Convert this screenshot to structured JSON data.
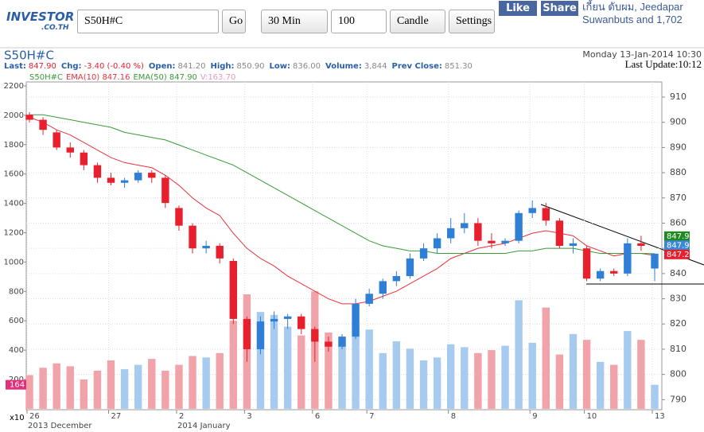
{
  "toolbar": {
    "logo": "INVESTOR",
    "logo_sub": ".CO.TH",
    "symbol": "S50H#C",
    "go": "Go",
    "interval": "30 Min",
    "count": "100",
    "chart_style": "Candle",
    "settings": "Settings",
    "like": "Like",
    "share": "Share",
    "social": "เกี้ยน ดับผม, Jeedapar Suwanbuts and 1,702"
  },
  "header": {
    "symbol": "S50H#C",
    "date": "Monday 13-Jan-2014 10:30",
    "last_update": "Last Update:10:12",
    "fields": [
      [
        "Last:",
        "847.90"
      ],
      [
        "Chg:",
        "-3.40 (-0.40 %)"
      ],
      [
        "Open:",
        "841.20"
      ],
      [
        "High:",
        "850.90"
      ],
      [
        "Low:",
        "836.00"
      ],
      [
        "Volume:",
        "3,844"
      ],
      [
        "Prev Close:",
        "851.30"
      ]
    ],
    "legend": [
      "S50H#C",
      "EMA(10) 847.16",
      "EMA(50) 847.90",
      "V:163.70"
    ]
  },
  "chart_data": {
    "type": "candlestick",
    "categories": [
      "26",
      null,
      null,
      null,
      null,
      null,
      "27",
      null,
      null,
      null,
      null,
      "2",
      null,
      null,
      null,
      null,
      "3",
      null,
      null,
      null,
      null,
      "6",
      null,
      null,
      null,
      "7",
      null,
      null,
      null,
      null,
      null,
      "8",
      null,
      null,
      null,
      null,
      null,
      "9",
      null,
      null,
      null,
      "10",
      null,
      null,
      null,
      null,
      "13"
    ],
    "open": [
      903,
      901,
      896,
      890,
      888,
      883,
      878,
      876,
      877,
      880,
      878,
      866,
      859,
      850,
      851,
      845,
      822,
      810,
      821,
      822,
      823,
      818,
      813,
      811,
      815,
      828,
      832,
      837,
      839,
      846,
      850,
      854,
      858,
      860,
      853,
      852,
      853,
      864,
      866,
      861,
      851,
      850,
      838,
      841,
      840,
      852,
      842
    ],
    "high": [
      904,
      902,
      897,
      892,
      889,
      884,
      880,
      878,
      881,
      881,
      879,
      867,
      860,
      853,
      852,
      846,
      823,
      823,
      825,
      824,
      824,
      819,
      815,
      816,
      830,
      834,
      838,
      841,
      848,
      852,
      856,
      862,
      864,
      862,
      856,
      854,
      865,
      869,
      868,
      862,
      854,
      851,
      842,
      842,
      854,
      855,
      846
    ],
    "low": [
      900,
      895,
      889,
      886,
      881,
      876,
      875,
      874,
      876,
      876,
      866,
      857,
      848,
      848,
      844,
      820,
      805,
      808,
      818,
      818,
      816,
      805,
      809,
      810,
      814,
      827,
      830,
      835,
      838,
      845,
      848,
      852,
      856,
      851,
      850,
      851,
      852,
      862,
      859,
      850,
      848,
      837,
      837,
      839,
      839,
      849,
      837
    ],
    "close": [
      901,
      897,
      890,
      888,
      883,
      878,
      876,
      877,
      880,
      878,
      868,
      859,
      850,
      851,
      846,
      822,
      810,
      821,
      822,
      823,
      818,
      813,
      811,
      815,
      828,
      832,
      837,
      839,
      846,
      850,
      854,
      858,
      860,
      853,
      852,
      853,
      864,
      866,
      861,
      851,
      852,
      838,
      841,
      840,
      852,
      851,
      847.9
    ],
    "volume": [
      230,
      280,
      310,
      290,
      200,
      260,
      330,
      270,
      300,
      340,
      260,
      300,
      360,
      350,
      380,
      600,
      780,
      660,
      640,
      560,
      500,
      800,
      520,
      460,
      600,
      540,
      380,
      460,
      410,
      330,
      350,
      440,
      420,
      380,
      400,
      430,
      740,
      450,
      690,
      370,
      510,
      470,
      320,
      300,
      530,
      470,
      164
    ],
    "series": [
      {
        "name": "EMA(10) 847.16",
        "color": "#e8323c",
        "axis": "y2",
        "values": [
          902,
          900,
          897,
          895,
          892,
          889,
          886,
          884,
          883,
          882,
          879,
          875,
          870,
          866,
          863,
          856,
          850,
          846,
          843,
          839,
          836,
          833,
          830,
          828,
          828,
          829,
          831,
          833,
          836,
          839,
          842,
          846,
          848,
          850,
          851,
          852,
          854,
          856,
          857,
          856,
          855,
          851,
          849,
          847,
          848,
          848,
          847.16
        ]
      },
      {
        "name": "EMA(50) 847.90",
        "color": "#3a9a3a",
        "axis": "y2",
        "values": [
          903,
          903,
          902,
          901,
          900,
          899,
          898,
          896,
          895,
          894,
          893,
          891,
          889,
          887,
          885,
          883,
          880,
          877,
          874,
          871,
          868,
          865,
          862,
          859,
          856,
          853,
          851,
          850,
          849,
          849,
          848,
          848,
          848,
          848,
          848,
          848,
          849,
          849,
          850,
          850,
          850,
          849,
          848,
          848,
          848,
          848,
          847.9
        ]
      }
    ],
    "up_color": "#2f7fd6",
    "down_color": "#e8202e",
    "up_volume_color": "#a6cbef",
    "down_volume_color": "#f2a3aa",
    "ylim": [
      -6,
      2227
    ],
    "yticks": [
      200,
      400,
      600,
      800,
      1000,
      1200,
      1400,
      1600,
      1800,
      2000,
      2200
    ],
    "y_multiplier": "x10",
    "y2lim": [
      786,
      916
    ],
    "y2ticks": [
      790,
      800,
      810,
      820,
      830,
      840,
      850,
      860,
      870,
      880,
      890,
      900,
      910
    ],
    "volume_badge": 164,
    "price_badges": [
      {
        "value": 847.9,
        "label": "847.9",
        "color": "#1f8a1f"
      },
      {
        "value": 847.9,
        "label": "847.9",
        "color": "#3a86d8"
      },
      {
        "value": 847.2,
        "label": "847.2",
        "color": "#e8202e"
      }
    ],
    "months": [
      "2013 December",
      "2014 January"
    ],
    "grid": true
  }
}
